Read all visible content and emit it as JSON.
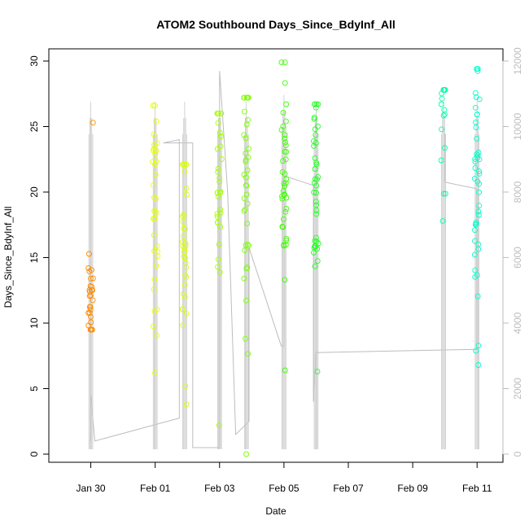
{
  "chart_data": {
    "type": "scatter",
    "title": "ATOM2 Southbound Days_Since_BdyInf_All",
    "xlabel": "Date",
    "ylabel": "Days_Since_BdyInf_All",
    "x_ticks": [
      "Jan 30",
      "Feb 01",
      "Feb 03",
      "Feb 05",
      "Feb 07",
      "Feb 09",
      "Feb 11"
    ],
    "y_ticks": [
      "0",
      "5",
      "10",
      "15",
      "20",
      "25",
      "30"
    ],
    "y_right_ticks": [
      "0",
      "2000",
      "4000",
      "6000",
      "8000",
      "10000",
      "12000"
    ],
    "xlim": [
      "2024-01-29T00:00",
      "2024-02-11T12:00"
    ],
    "ylim": [
      0,
      30
    ],
    "y_right_lim": [
      0,
      12000
    ],
    "grid": false,
    "legend": "none",
    "series": [
      {
        "x": "2024-01-30T00:00",
        "color": "#ff8c00",
        "count": 30,
        "ymin": 9.5,
        "ymax": 25.3,
        "center": 11.8,
        "spread": 2.5
      },
      {
        "x": "2024-02-01T00:00",
        "color": "#e6ff00",
        "count": 35,
        "ymin": 6.2,
        "ymax": 26.6,
        "center": 20.0,
        "spread": 5.5
      },
      {
        "x": "2024-02-01T22:00",
        "color": "#d9ff00",
        "count": 35,
        "ymin": 3.8,
        "ymax": 22.1,
        "center": 16.5,
        "spread": 5.0
      },
      {
        "x": "2024-02-03T00:00",
        "color": "#a6ff00",
        "count": 35,
        "ymin": 2.2,
        "ymax": 26.0,
        "center": 20.5,
        "spread": 5.0
      },
      {
        "x": "2024-02-03T20:00",
        "color": "#7cff00",
        "count": 40,
        "ymin": 0.0,
        "ymax": 27.2,
        "center": 21.0,
        "spread": 5.5
      },
      {
        "x": "2024-02-05T00:00",
        "color": "#3dff00",
        "count": 40,
        "ymin": 6.4,
        "ymax": 29.9,
        "center": 21.5,
        "spread": 4.5
      },
      {
        "x": "2024-02-06T00:00",
        "color": "#22ff22",
        "count": 40,
        "ymin": 6.3,
        "ymax": 26.7,
        "center": 20.0,
        "spread": 5.0
      },
      {
        "x": "2024-02-09T23:00",
        "color": "#00ffa6",
        "count": 16,
        "ymin": 17.8,
        "ymax": 27.8,
        "center": 25.0,
        "spread": 2.5
      },
      {
        "x": "2024-02-11T00:00",
        "color": "#00ffcc",
        "count": 45,
        "ymin": 6.8,
        "ymax": 29.4,
        "center": 20.0,
        "spread": 5.0
      }
    ],
    "secondary_line": {
      "color": "#bdbdbd",
      "points": [
        [
          "2024-01-30T00:00",
          400
        ],
        [
          "2024-01-30T00:00",
          1800
        ],
        [
          "2024-01-30T03:00",
          400
        ],
        [
          "2024-02-01T18:00",
          1100
        ],
        [
          "2024-02-01T18:00",
          9600
        ],
        [
          "2024-02-01T06:00",
          9500
        ],
        [
          "2024-02-02T04:00",
          9500
        ],
        [
          "2024-02-02T04:00",
          200
        ],
        [
          "2024-02-03T00:00",
          200
        ],
        [
          "2024-02-03T00:00",
          11700
        ],
        [
          "2024-02-03T06:00",
          8000
        ],
        [
          "2024-02-03T12:00",
          600
        ],
        [
          "2024-02-03T22:00",
          1000
        ],
        [
          "2024-02-03T22:00",
          6300
        ],
        [
          "2024-02-04T22:00",
          3300
        ],
        [
          "2024-02-05T00:00",
          3300
        ],
        [
          "2024-02-05T00:00",
          8500
        ],
        [
          "2024-02-05T22:00",
          8200
        ],
        [
          "2024-02-05T22:00",
          1600
        ],
        [
          "2024-02-06T00:00",
          3100
        ],
        [
          "2024-02-11T00:00",
          3200
        ],
        [
          "2024-02-11T00:00",
          8100
        ],
        [
          "2024-02-10T00:00",
          8300
        ],
        [
          "2024-02-10T00:00",
          9800
        ]
      ]
    }
  }
}
